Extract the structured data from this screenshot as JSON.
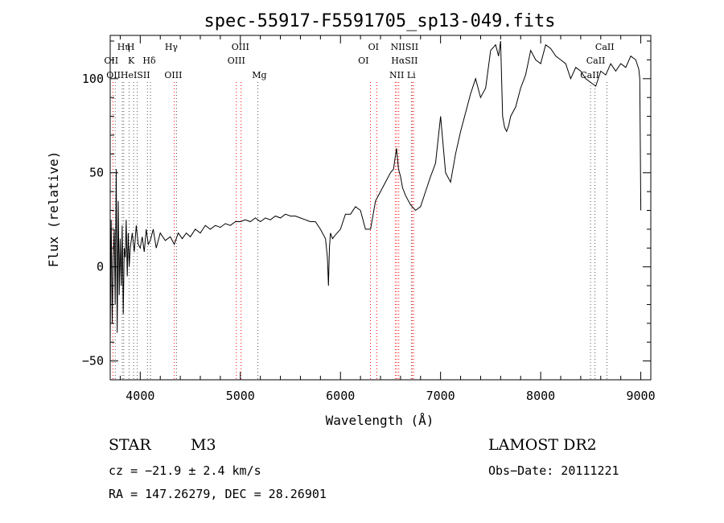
{
  "chart_data": {
    "type": "line",
    "title": "spec-55917-F5591705_sp13-049.fits",
    "xlabel": "Wavelength (Å)",
    "ylabel": "Flux (relative)",
    "xlim": [
      3700,
      9100
    ],
    "ylim": [
      -60,
      123
    ],
    "x_ticks": [
      4000,
      5000,
      6000,
      7000,
      8000,
      9000
    ],
    "y_ticks": [
      -50,
      0,
      50,
      100
    ],
    "x_tick_labels": [
      "4000",
      "5000",
      "6000",
      "7000",
      "8000",
      "9000"
    ],
    "y_tick_labels": [
      "−50",
      "0",
      "50",
      "100"
    ],
    "grid": false,
    "series": [
      {
        "color": "#000000",
        "x": [
          3700,
          3710,
          3720,
          3730,
          3740,
          3750,
          3760,
          3770,
          3780,
          3790,
          3800,
          3810,
          3820,
          3830,
          3840,
          3850,
          3860,
          3870,
          3880,
          3890,
          3900,
          3920,
          3940,
          3960,
          3980,
          4000,
          4020,
          4040,
          4060,
          4080,
          4100,
          4130,
          4160,
          4200,
          4250,
          4300,
          4340,
          4380,
          4420,
          4460,
          4500,
          4550,
          4600,
          4650,
          4700,
          4750,
          4800,
          4850,
          4900,
          4950,
          5000,
          5050,
          5100,
          5150,
          5200,
          5250,
          5300,
          5350,
          5400,
          5450,
          5500,
          5550,
          5600,
          5650,
          5700,
          5750,
          5800,
          5850,
          5870,
          5880,
          5890,
          5900,
          5920,
          5950,
          6000,
          6050,
          6100,
          6150,
          6200,
          6250,
          6300,
          6350,
          6400,
          6450,
          6500,
          6530,
          6560,
          6580,
          6600,
          6620,
          6650,
          6700,
          6750,
          6800,
          6850,
          6900,
          6950,
          7000,
          7050,
          7100,
          7150,
          7200,
          7250,
          7300,
          7350,
          7400,
          7450,
          7500,
          7550,
          7580,
          7600,
          7620,
          7640,
          7660,
          7680,
          7700,
          7750,
          7800,
          7850,
          7900,
          7950,
          8000,
          8050,
          8100,
          8150,
          8200,
          8250,
          8300,
          8350,
          8400,
          8450,
          8500,
          8550,
          8600,
          8650,
          8700,
          8750,
          8800,
          8850,
          8900,
          8950,
          8980,
          8990,
          9000
        ],
        "y": [
          -40,
          25,
          -30,
          5,
          20,
          -20,
          52,
          -35,
          35,
          -15,
          15,
          -10,
          22,
          -25,
          10,
          5,
          25,
          -5,
          18,
          0,
          10,
          18,
          8,
          22,
          12,
          10,
          16,
          8,
          20,
          12,
          14,
          20,
          10,
          18,
          14,
          16,
          12,
          18,
          15,
          18,
          16,
          20,
          18,
          22,
          20,
          22,
          21,
          23,
          22,
          24,
          24,
          25,
          24,
          26,
          24,
          26,
          25,
          27,
          26,
          28,
          27,
          27,
          26,
          25,
          24,
          24,
          20,
          15,
          5,
          -10,
          10,
          18,
          15,
          17,
          20,
          28,
          28,
          32,
          30,
          20,
          20,
          35,
          40,
          45,
          50,
          52,
          63,
          52,
          48,
          42,
          38,
          33,
          30,
          32,
          40,
          48,
          55,
          80,
          50,
          45,
          60,
          72,
          82,
          92,
          100,
          90,
          95,
          115,
          118,
          112,
          120,
          80,
          74,
          72,
          75,
          80,
          85,
          95,
          102,
          115,
          110,
          108,
          118,
          116,
          112,
          110,
          108,
          100,
          106,
          104,
          100,
          98,
          96,
          104,
          102,
          108,
          104,
          108,
          106,
          112,
          110,
          105,
          100,
          30
        ],
        "ylim_clip": true
      }
    ],
    "line_markers": [
      {
        "wavelength": 3727,
        "color": "#ff0000",
        "labels": [
          "OII"
        ]
      },
      {
        "wavelength": 3750,
        "color": "#555555",
        "labels": [
          "OII"
        ]
      },
      {
        "wavelength": 3820,
        "color": "#555555",
        "labels": [
          "HeI"
        ]
      },
      {
        "wavelength": 3835,
        "color": "#555555",
        "labels": [
          "Hη"
        ]
      },
      {
        "wavelength": 3889,
        "color": "#555555",
        "labels": [
          "H"
        ]
      },
      {
        "wavelength": 3934,
        "color": "#555555",
        "labels": [
          "K"
        ]
      },
      {
        "wavelength": 3970,
        "color": "#555555",
        "labels": [
          "H"
        ]
      },
      {
        "wavelength": 4072,
        "color": "#555555",
        "labels": [
          "SII"
        ]
      },
      {
        "wavelength": 4102,
        "color": "#555555",
        "labels": [
          "Hδ"
        ]
      },
      {
        "wavelength": 4341,
        "color": "#ff0000",
        "labels": [
          "Hγ"
        ]
      },
      {
        "wavelength": 4363,
        "color": "#555555",
        "labels": [
          "OIII"
        ]
      },
      {
        "wavelength": 4960,
        "color": "#ff0000",
        "labels": [
          "OIII"
        ]
      },
      {
        "wavelength": 5007,
        "color": "#ff0000",
        "labels": [
          "OIII"
        ]
      },
      {
        "wavelength": 5175,
        "color": "#555555",
        "labels": [
          "Mg"
        ]
      },
      {
        "wavelength": 6300,
        "color": "#ff0000",
        "labels": [
          "OI"
        ]
      },
      {
        "wavelength": 6363,
        "color": "#ff0000",
        "labels": [
          "OI"
        ]
      },
      {
        "wavelength": 6548,
        "color": "#ff0000",
        "labels": [
          "NII"
        ]
      },
      {
        "wavelength": 6563,
        "color": "#ff0000",
        "labels": [
          "Hα"
        ]
      },
      {
        "wavelength": 6583,
        "color": "#ff0000",
        "labels": [
          "NII"
        ]
      },
      {
        "wavelength": 6708,
        "color": "#555555",
        "labels": [
          "Li"
        ]
      },
      {
        "wavelength": 6716,
        "color": "#ff0000",
        "labels": [
          "SII"
        ]
      },
      {
        "wavelength": 6731,
        "color": "#ff0000",
        "labels": [
          "SII"
        ]
      },
      {
        "wavelength": 8498,
        "color": "#555555",
        "labels": [
          "CaII"
        ]
      },
      {
        "wavelength": 8542,
        "color": "#555555",
        "labels": [
          "CaII"
        ]
      },
      {
        "wavelength": 8662,
        "color": "#555555",
        "labels": [
          "CaII"
        ]
      }
    ],
    "marker_label_rows": [
      [
        {
          "text": "Hη",
          "wavelength": 3835
        },
        {
          "text": "H",
          "wavelength": 3905
        },
        {
          "text": "Hγ",
          "wavelength": 4310
        },
        {
          "text": "OIII",
          "wavelength": 5000
        },
        {
          "text": "OI",
          "wavelength": 6330
        },
        {
          "text": "NIISII",
          "wavelength": 6640
        },
        {
          "text": "CaII",
          "wavelength": 8640
        }
      ],
      [
        {
          "text": "OII",
          "wavelength": 3710
        },
        {
          "text": "K",
          "wavelength": 3910
        },
        {
          "text": "Hδ",
          "wavelength": 4090
        },
        {
          "text": "OIII",
          "wavelength": 4960
        },
        {
          "text": "OI",
          "wavelength": 6230
        },
        {
          "text": "HαSII",
          "wavelength": 6640
        },
        {
          "text": "CaII",
          "wavelength": 8550
        }
      ],
      [
        {
          "text": "OIIHeISII",
          "wavelength": 3880
        },
        {
          "text": "OIII",
          "wavelength": 4330
        },
        {
          "text": "Mg",
          "wavelength": 5190
        },
        {
          "text": "NII Li",
          "wavelength": 6620
        },
        {
          "text": "CaII",
          "wavelength": 8490
        }
      ]
    ]
  },
  "info": {
    "object_type": "STAR",
    "subclass": "M3",
    "survey": "LAMOST DR2",
    "cz": "cz = −21.9 ± 2.4 km/s",
    "obs_date": "Obs−Date: 20111221",
    "coords": "RA = 147.26279, DEC =  28.26901"
  }
}
